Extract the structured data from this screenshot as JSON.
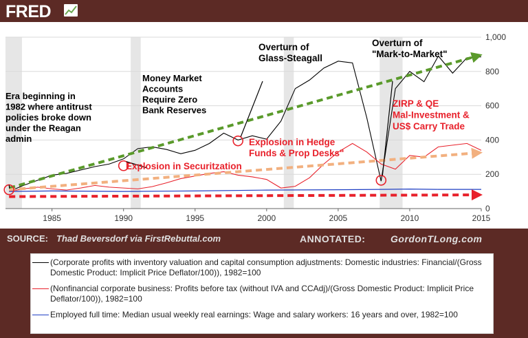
{
  "brand": {
    "name": "FRED",
    "icon": "fred-chart-icon"
  },
  "footer": {
    "source_label": "SOURCE:",
    "source_text": "Thad Beversdorf via FirstRebuttal.com",
    "annotated_label": "ANNOTATED:",
    "annotated_text": "GordonTLong.com"
  },
  "colors": {
    "header_bg": "#5c2a25",
    "series_black": "#000000",
    "series_red": "#e8212b",
    "series_blue": "#1f3fc4",
    "annotation_red": "#e8212b",
    "trend_green": "#5a9a2b",
    "trend_orange": "#f2b07f",
    "recession_shade": "#e6e6e6"
  },
  "chart_data": {
    "type": "line",
    "x_unit": "year",
    "xlim": [
      1981.75,
      2015
    ],
    "ylim": [
      0,
      1000
    ],
    "x_ticks": [
      1985,
      1990,
      1995,
      2000,
      2005,
      2010,
      2015
    ],
    "x_tick_labels": [
      "1985",
      "1990",
      "1995",
      "2000",
      "2005",
      "2010",
      "2015"
    ],
    "y_ticks": [
      0,
      200,
      400,
      600,
      800,
      1000
    ],
    "y_tick_labels": [
      "0",
      "200",
      "400",
      "600",
      "800",
      "1,000"
    ],
    "y_axis_side": "right",
    "grid": "horizontal",
    "recessions": [
      [
        1981.5,
        1982.9
      ],
      [
        1990.5,
        1991.2
      ],
      [
        2001.2,
        2001.9
      ],
      [
        2007.9,
        2009.5
      ]
    ],
    "series": [
      {
        "color": "#000000",
        "points": [
          [
            1982,
            100
          ],
          [
            1983,
            135
          ],
          [
            1984,
            165
          ],
          [
            1985,
            195
          ],
          [
            1986,
            205
          ],
          [
            1987,
            225
          ],
          [
            1988,
            245
          ],
          [
            1989,
            260
          ],
          [
            1990,
            290
          ],
          [
            1991,
            350
          ],
          [
            1992,
            360
          ],
          [
            1993,
            345
          ],
          [
            1994,
            320
          ],
          [
            1995,
            340
          ],
          [
            1996,
            380
          ],
          [
            1997,
            440
          ],
          [
            1998,
            400
          ],
          [
            1999,
            425
          ],
          [
            2000,
            405
          ],
          [
            2001,
            510
          ],
          [
            2002,
            700
          ],
          [
            2003,
            750
          ],
          [
            2004,
            820
          ],
          [
            2005,
            860
          ],
          [
            2006,
            850
          ],
          [
            2007,
            530
          ],
          [
            2008,
            160
          ],
          [
            2009,
            700
          ],
          [
            2010,
            800
          ],
          [
            2011,
            740
          ],
          [
            2012,
            890
          ],
          [
            2013,
            790
          ],
          [
            2014,
            880
          ],
          [
            2015,
            885
          ]
        ]
      },
      {
        "color": "#e8212b",
        "points": [
          [
            1982,
            100
          ],
          [
            1983,
            115
          ],
          [
            1984,
            125
          ],
          [
            1985,
            115
          ],
          [
            1986,
            108
          ],
          [
            1987,
            120
          ],
          [
            1988,
            135
          ],
          [
            1989,
            125
          ],
          [
            1990,
            120
          ],
          [
            1991,
            115
          ],
          [
            1992,
            128
          ],
          [
            1993,
            150
          ],
          [
            1994,
            175
          ],
          [
            1995,
            190
          ],
          [
            1996,
            205
          ],
          [
            1997,
            215
          ],
          [
            1998,
            195
          ],
          [
            1999,
            185
          ],
          [
            2000,
            170
          ],
          [
            2001,
            120
          ],
          [
            2002,
            130
          ],
          [
            2003,
            180
          ],
          [
            2004,
            260
          ],
          [
            2005,
            330
          ],
          [
            2006,
            380
          ],
          [
            2007,
            330
          ],
          [
            2008,
            260
          ],
          [
            2009,
            230
          ],
          [
            2010,
            310
          ],
          [
            2011,
            300
          ],
          [
            2012,
            360
          ],
          [
            2013,
            370
          ],
          [
            2014,
            380
          ],
          [
            2015,
            340
          ]
        ]
      },
      {
        "color": "#1f3fc4",
        "points": [
          [
            1982,
            100
          ],
          [
            1985,
            103
          ],
          [
            1990,
            100
          ],
          [
            1995,
            103
          ],
          [
            2000,
            108
          ],
          [
            2005,
            110
          ],
          [
            2008,
            112
          ],
          [
            2010,
            114
          ],
          [
            2012,
            112
          ],
          [
            2015,
            112
          ]
        ]
      }
    ],
    "trend_arrows": [
      {
        "color": "#5a9a2b",
        "from": [
          1982,
          120
        ],
        "to": [
          2015,
          890
        ]
      },
      {
        "color": "#f2b07f",
        "from": [
          1982,
          110
        ],
        "to": [
          2015,
          325
        ]
      },
      {
        "color": "#e8212b",
        "from": [
          1982,
          70
        ],
        "to": [
          2015,
          80
        ]
      }
    ],
    "markers": [
      {
        "x": 1982,
        "y": 110,
        "color": "#e8212b"
      },
      {
        "x": 1990,
        "y": 250,
        "color": "#e8212b"
      },
      {
        "x": 1998,
        "y": 395,
        "color": "#e8212b"
      },
      {
        "x": 2008,
        "y": 165,
        "color": "#e8212b"
      }
    ],
    "annotations": [
      {
        "lines": [
          "Era beginning in",
          "1982 where antitrust",
          "policies broke down",
          "under the Reagan",
          "admin"
        ],
        "color": "#000000"
      },
      {
        "lines": [
          "Money Market",
          "Accounts",
          "Require Zero",
          "Bank Reserves"
        ],
        "color": "#000000"
      },
      {
        "lines": [
          "Overturn of",
          "Glass-Steagall"
        ],
        "color": "#000000"
      },
      {
        "lines": [
          "Overturn of",
          "\"Mark-to-Market\""
        ],
        "color": "#000000"
      },
      {
        "lines": [
          "ZIRP & QE",
          "Mal-Investment &",
          "US$ Carry Trade"
        ],
        "color": "#e8212b"
      },
      {
        "lines": [
          "Explosion in Hedge",
          "Funds & Prop Desks\""
        ],
        "color": "#e8212b"
      },
      {
        "lines": [
          "Explosion in Securitzation"
        ],
        "color": "#e8212b"
      }
    ],
    "legend": [
      {
        "color": "#000000",
        "label": "(Corporate profits with inventory valuation and capital consumption adjustments: Domestic industries: Financial/(Gross Domestic Product: Implicit Price Deflator/100)), 1982=100"
      },
      {
        "color": "#e8212b",
        "label": "(Nonfinancial corporate business: Profits before tax (without IVA and CCAdj)/(Gross Domestic Product: Implicit Price Deflator/100)), 1982=100"
      },
      {
        "color": "#1f3fc4",
        "label": "Employed full time: Median usual weekly real earnings: Wage and salary workers: 16 years and over, 1982=100"
      }
    ],
    "legend_placement": "bottom"
  }
}
